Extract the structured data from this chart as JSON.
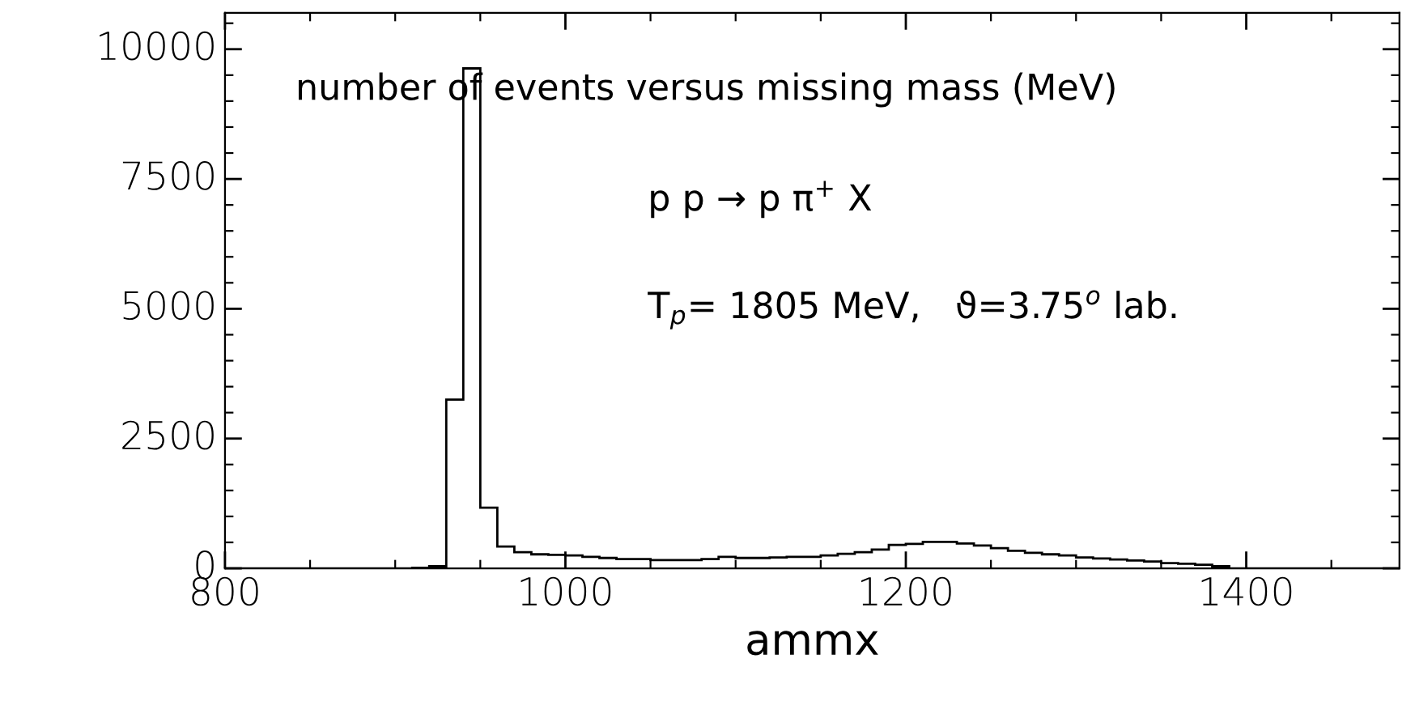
{
  "chart_data": {
    "type": "histogram",
    "xlabel": "ammx",
    "annotations": [
      "number of events versus missing mass (MeV)",
      "p p → p π$^{+}$ X",
      "T$_{p}$= 1805 MeV,   ϑ=3.75$^{o}$ lab."
    ],
    "bins": [
      800,
      810,
      820,
      830,
      840,
      850,
      860,
      870,
      880,
      890,
      900,
      910,
      920,
      930,
      940,
      950,
      960,
      970,
      980,
      990,
      1000,
      1010,
      1020,
      1030,
      1040,
      1050,
      1060,
      1070,
      1080,
      1090,
      1100,
      1110,
      1120,
      1130,
      1140,
      1150,
      1160,
      1170,
      1180,
      1190,
      1200,
      1210,
      1220,
      1230,
      1240,
      1250,
      1260,
      1270,
      1280,
      1290,
      1300,
      1310,
      1320,
      1330,
      1340,
      1350,
      1360,
      1370,
      1380,
      1390,
      1400,
      1410,
      1420,
      1430,
      1440,
      1450,
      1460,
      1470,
      1480,
      1490
    ],
    "values": [
      0,
      0,
      0,
      0,
      0,
      0,
      0,
      0,
      0,
      0,
      0,
      10,
      40,
      3250,
      9630,
      1170,
      420,
      310,
      270,
      260,
      250,
      220,
      200,
      180,
      180,
      160,
      160,
      160,
      180,
      220,
      200,
      200,
      210,
      220,
      220,
      250,
      280,
      310,
      360,
      450,
      470,
      510,
      510,
      480,
      440,
      390,
      340,
      300,
      270,
      250,
      210,
      190,
      170,
      150,
      130,
      100,
      90,
      70,
      40,
      0,
      0,
      0,
      0,
      0,
      0,
      0,
      0,
      0,
      0
    ],
    "color": "#000000",
    "xlim": [
      800,
      1490
    ],
    "ylim": [
      0,
      10700
    ],
    "xticks": [
      800,
      {
        "value": 850,
        "label": null
      },
      {
        "value": 900,
        "label": null
      },
      {
        "value": 950,
        "label": null
      },
      1000,
      {
        "value": 1050,
        "label": null
      },
      {
        "value": 1100,
        "label": null
      },
      {
        "value": 1150,
        "label": null
      },
      1200,
      {
        "value": 1250,
        "label": null
      },
      {
        "value": 1300,
        "label": null
      },
      {
        "value": 1350,
        "label": null
      },
      1400,
      {
        "value": 1450,
        "label": null
      }
    ],
    "yticks": [
      0,
      {
        "value": 500,
        "label": null
      },
      {
        "value": 1000,
        "label": null
      },
      {
        "value": 1500,
        "label": null
      },
      {
        "value": 2000,
        "label": null
      },
      2500,
      {
        "value": 3000,
        "label": null
      },
      {
        "value": 3500,
        "label": null
      },
      {
        "value": 4000,
        "label": null
      },
      {
        "value": 4500,
        "label": null
      },
      5000,
      {
        "value": 5500,
        "label": null
      },
      {
        "value": 6000,
        "label": null
      },
      {
        "value": 6500,
        "label": null
      },
      {
        "value": 7000,
        "label": null
      },
      7500,
      {
        "value": 8000,
        "label": null
      },
      {
        "value": 8500,
        "label": null
      },
      {
        "value": 9000,
        "label": null
      },
      {
        "value": 9500,
        "label": null
      },
      10000,
      {
        "value": 10500,
        "label": null
      }
    ],
    "grid": false,
    "legend": false
  }
}
